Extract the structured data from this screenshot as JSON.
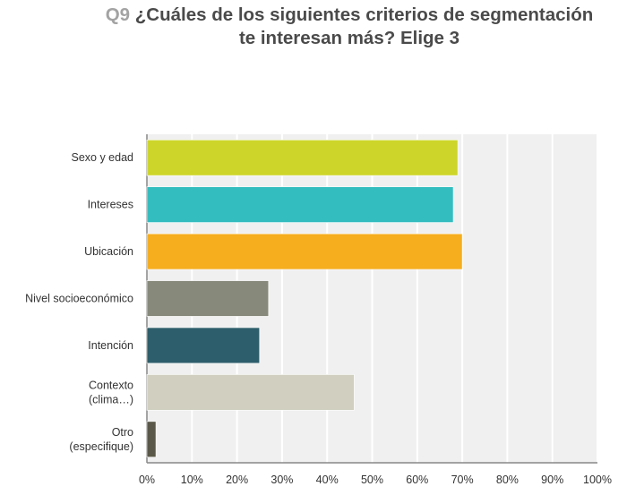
{
  "header": {
    "question_number": "Q9",
    "title_line1": "¿Cuáles de los siguientes criterios de segmentación",
    "title_line2": "te interesan más? Elige 3"
  },
  "chart_data": {
    "type": "bar",
    "orientation": "horizontal",
    "title": "Q9 ¿Cuáles de los siguientes criterios de segmentación te interesan más? Elige 3",
    "categories": [
      [
        "Sexo y edad"
      ],
      [
        "Intereses"
      ],
      [
        "Ubicación"
      ],
      [
        "Nivel socioeconómico"
      ],
      [
        "Intención"
      ],
      [
        "Contexto",
        "(clima…)"
      ],
      [
        "Otro",
        "(especifique)"
      ]
    ],
    "values": [
      69,
      68,
      70,
      27,
      25,
      46,
      2
    ],
    "colors": [
      "#cdd52a",
      "#33bdbf",
      "#f6ae1f",
      "#878a7a",
      "#2d5e6b",
      "#d0cfc0",
      "#5a5848"
    ],
    "xlabel": "",
    "ylabel": "",
    "xlim": [
      0,
      100
    ],
    "x_ticks": [
      "0%",
      "10%",
      "20%",
      "30%",
      "40%",
      "50%",
      "60%",
      "70%",
      "80%",
      "90%",
      "100%"
    ],
    "grid": true,
    "legend": "none",
    "plot_background": "#f0f0f0"
  }
}
